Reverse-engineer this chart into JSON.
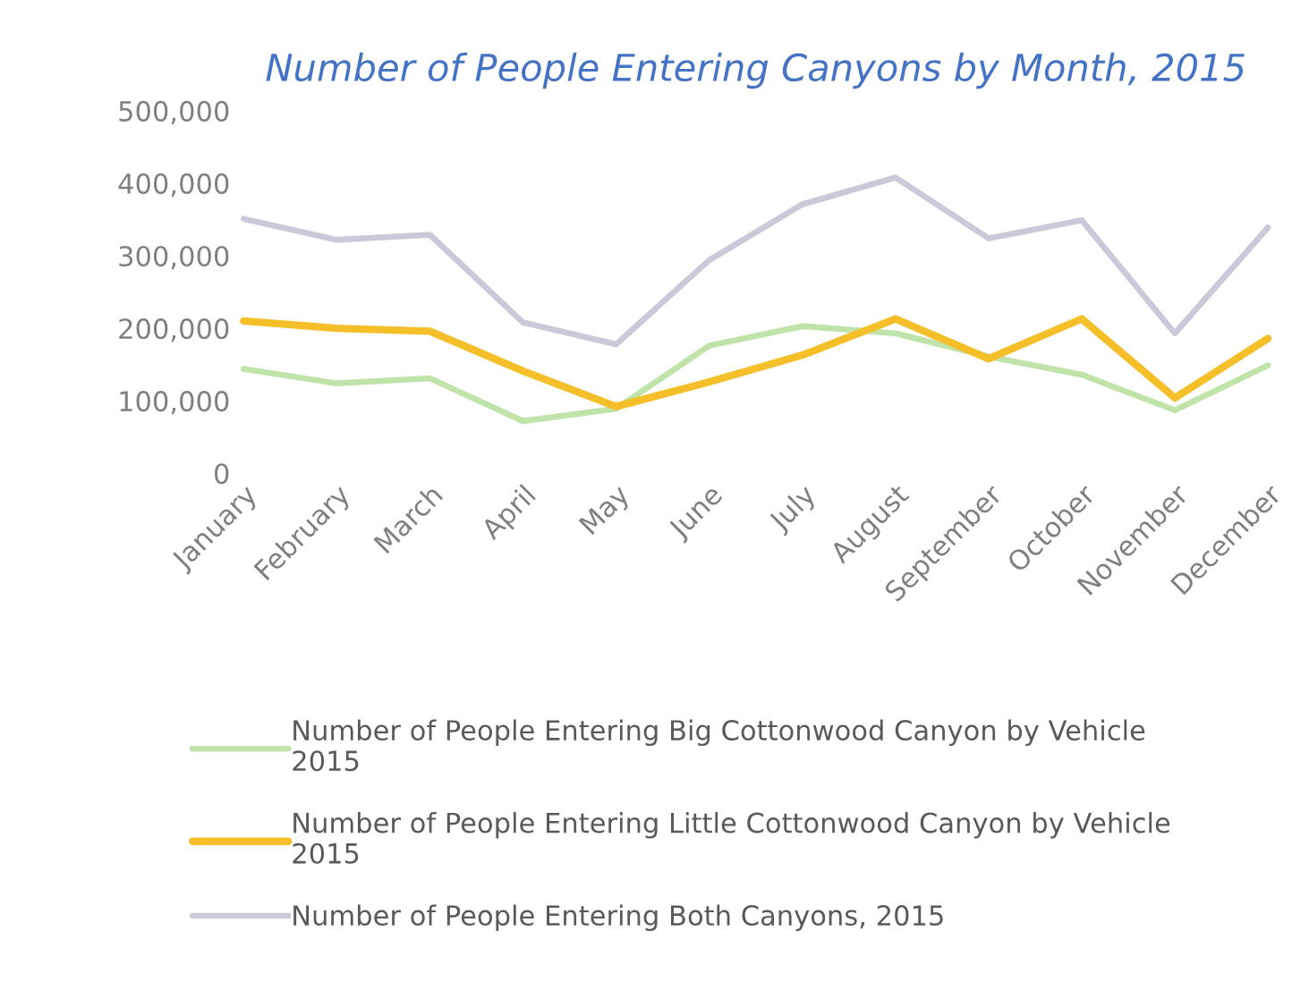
{
  "chart_data": {
    "type": "line",
    "title": "Number of People Entering Canyons by Month, 2015",
    "categories": [
      "January",
      "February",
      "March",
      "April",
      "May",
      "June",
      "July",
      "August",
      "September",
      "October",
      "November",
      "December"
    ],
    "series": [
      {
        "name": "Number of People Entering Big Cottonwood Canyon by Vehicle\n2015",
        "color": "#bfe3a8",
        "values": [
          144000,
          124000,
          131000,
          72000,
          89000,
          176000,
          203000,
          193000,
          161000,
          136000,
          87000,
          149000
        ]
      },
      {
        "name": "Number of People Entering Little Cottonwood Canyon by Vehicle\n2015",
        "color": "#f5bf2a",
        "values": [
          210000,
          200000,
          196000,
          141000,
          92000,
          126000,
          163000,
          213000,
          158000,
          213000,
          104000,
          186000
        ]
      },
      {
        "name": "Number of People Entering Both Canyons, 2015",
        "color": "#c9c9da",
        "values": [
          351000,
          322000,
          329000,
          208000,
          178000,
          294000,
          371000,
          408000,
          324000,
          349000,
          193000,
          339000
        ]
      }
    ],
    "ylim": [
      0,
      500000
    ],
    "yticks": [
      {
        "value": 0,
        "label": "0"
      },
      {
        "value": 100000,
        "label": "100,000"
      },
      {
        "value": 200000,
        "label": "200,000"
      },
      {
        "value": 300000,
        "label": "300,000"
      },
      {
        "value": 400000,
        "label": "400,000"
      },
      {
        "value": 500000,
        "label": "500,000"
      }
    ],
    "grid": false,
    "legend": "bottom",
    "marker": "none",
    "line_style": "solid"
  }
}
